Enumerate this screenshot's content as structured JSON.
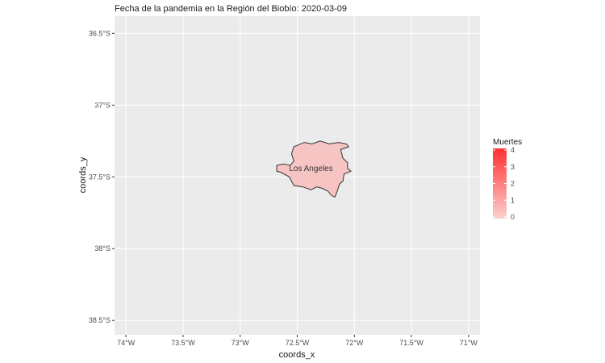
{
  "title": "Fecha de la pandemia en la Región del Biobío: 2020-03-09",
  "axes": {
    "xlabel": "coords_x",
    "ylabel": "coords_y",
    "x_ticks": [
      {
        "value": -74.0,
        "label": "74°W"
      },
      {
        "value": -73.5,
        "label": "73.5°W"
      },
      {
        "value": -73.0,
        "label": "73°W"
      },
      {
        "value": -72.5,
        "label": "72.5°W"
      },
      {
        "value": -72.0,
        "label": "72°W"
      },
      {
        "value": -71.5,
        "label": "71.5°W"
      },
      {
        "value": -71.0,
        "label": "71°W"
      }
    ],
    "y_ticks": [
      {
        "value": -36.5,
        "label": "36.5°S"
      },
      {
        "value": -37.0,
        "label": "37°S"
      },
      {
        "value": -37.5,
        "label": "37.5°S"
      },
      {
        "value": -38.0,
        "label": "38°S"
      },
      {
        "value": -38.5,
        "label": "38.5°S"
      }
    ],
    "xlim": [
      -74.1,
      -70.9
    ],
    "ylim": [
      -38.6,
      -36.38
    ]
  },
  "map_data": {
    "region_name": "Los Ángeles",
    "region_label": "Los Angeles",
    "muertes": 0,
    "fill_color": "#f7c4c4",
    "outline": [
      [
        -72.53,
        -37.29
      ],
      [
        -72.44,
        -37.26
      ],
      [
        -72.37,
        -37.27
      ],
      [
        -72.3,
        -37.25
      ],
      [
        -72.22,
        -37.27
      ],
      [
        -72.14,
        -37.26
      ],
      [
        -72.07,
        -37.27
      ],
      [
        -72.05,
        -37.29
      ],
      [
        -72.12,
        -37.31
      ],
      [
        -72.1,
        -37.37
      ],
      [
        -72.06,
        -37.4
      ],
      [
        -72.06,
        -37.44
      ],
      [
        -72.03,
        -37.46
      ],
      [
        -72.09,
        -37.48
      ],
      [
        -72.1,
        -37.53
      ],
      [
        -72.13,
        -37.55
      ],
      [
        -72.15,
        -37.6
      ],
      [
        -72.17,
        -37.64
      ],
      [
        -72.2,
        -37.63
      ],
      [
        -72.23,
        -37.6
      ],
      [
        -72.28,
        -37.58
      ],
      [
        -72.33,
        -37.57
      ],
      [
        -72.38,
        -37.59
      ],
      [
        -72.45,
        -37.57
      ],
      [
        -72.53,
        -37.56
      ],
      [
        -72.57,
        -37.5
      ],
      [
        -72.64,
        -37.47
      ],
      [
        -72.68,
        -37.46
      ],
      [
        -72.68,
        -37.42
      ],
      [
        -72.62,
        -37.41
      ],
      [
        -72.56,
        -37.42
      ],
      [
        -72.53,
        -37.39
      ],
      [
        -72.55,
        -37.34
      ],
      [
        -72.53,
        -37.29
      ]
    ],
    "label_position": [
      -72.38,
      -37.46
    ]
  },
  "legend": {
    "title": "Muertes",
    "min": 0,
    "max": 4,
    "labels": [
      "4",
      "3",
      "2",
      "1",
      "0"
    ],
    "color_low": "#fcd0d0",
    "color_high": "#ff3030"
  },
  "colors": {
    "panel": "#ebebeb",
    "grid_major": "#ffffff",
    "outline": "#333333"
  }
}
